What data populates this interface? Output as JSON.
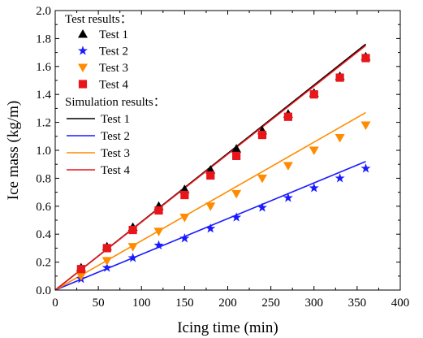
{
  "chart_data": {
    "type": "scatter",
    "xlabel": "Icing time (min)",
    "ylabel": "Ice mass (kg/m)",
    "xlim": [
      0,
      400
    ],
    "ylim": [
      0,
      2.0
    ],
    "xticks": [
      0,
      50,
      100,
      150,
      200,
      250,
      300,
      350,
      400
    ],
    "yticks": [
      0.0,
      0.2,
      0.4,
      0.6,
      0.8,
      1.0,
      1.2,
      1.4,
      1.6,
      1.8,
      2.0
    ],
    "ytick_labels": [
      "0.0",
      "0.2",
      "0.4",
      "0.6",
      "0.8",
      "1.0",
      "1.2",
      "1.4",
      "1.6",
      "1.8",
      "2.0"
    ],
    "grid": false,
    "legend_position": "top-left",
    "legend_groups": [
      {
        "title": "Test results：",
        "kind": "markers"
      },
      {
        "title": "Simulation results：",
        "kind": "lines"
      }
    ],
    "test_series": [
      {
        "name": "Test 1",
        "marker": "triangle-up",
        "color": "#000000",
        "x": [
          30,
          60,
          90,
          120,
          150,
          180,
          210,
          240,
          270,
          300,
          330,
          360
        ],
        "y": [
          0.16,
          0.31,
          0.45,
          0.6,
          0.72,
          0.86,
          1.01,
          1.14,
          1.26,
          1.41,
          1.53,
          1.67
        ]
      },
      {
        "name": "Test 2",
        "marker": "star",
        "color": "#1a1aff",
        "x": [
          30,
          60,
          90,
          120,
          150,
          180,
          210,
          240,
          270,
          300,
          330,
          360
        ],
        "y": [
          0.08,
          0.16,
          0.23,
          0.32,
          0.37,
          0.44,
          0.52,
          0.59,
          0.66,
          0.73,
          0.8,
          0.87
        ]
      },
      {
        "name": "Test 3",
        "marker": "triangle-down",
        "color": "#ff8c00",
        "x": [
          30,
          60,
          90,
          120,
          150,
          180,
          210,
          240,
          270,
          300,
          330,
          360
        ],
        "y": [
          0.1,
          0.21,
          0.31,
          0.42,
          0.52,
          0.6,
          0.69,
          0.8,
          0.89,
          1.0,
          1.09,
          1.18
        ]
      },
      {
        "name": "Test 4",
        "marker": "square",
        "color": "#e8161b",
        "x": [
          30,
          60,
          90,
          120,
          150,
          180,
          210,
          240,
          270,
          300,
          330,
          360
        ],
        "y": [
          0.15,
          0.3,
          0.43,
          0.57,
          0.68,
          0.82,
          0.96,
          1.11,
          1.24,
          1.4,
          1.52,
          1.66
        ]
      }
    ],
    "simulation_series": [
      {
        "name": "Test 1",
        "color": "#000000",
        "x": [
          0,
          360
        ],
        "y": [
          0.0,
          1.76
        ]
      },
      {
        "name": "Test 2",
        "color": "#1a1aff",
        "x": [
          0,
          360
        ],
        "y": [
          0.0,
          0.92
        ]
      },
      {
        "name": "Test 3",
        "color": "#ff8c00",
        "x": [
          0,
          360
        ],
        "y": [
          0.0,
          1.27
        ]
      },
      {
        "name": "Test 4",
        "color": "#e8161b",
        "x": [
          0,
          360
        ],
        "y": [
          0.0,
          1.75
        ]
      }
    ]
  }
}
